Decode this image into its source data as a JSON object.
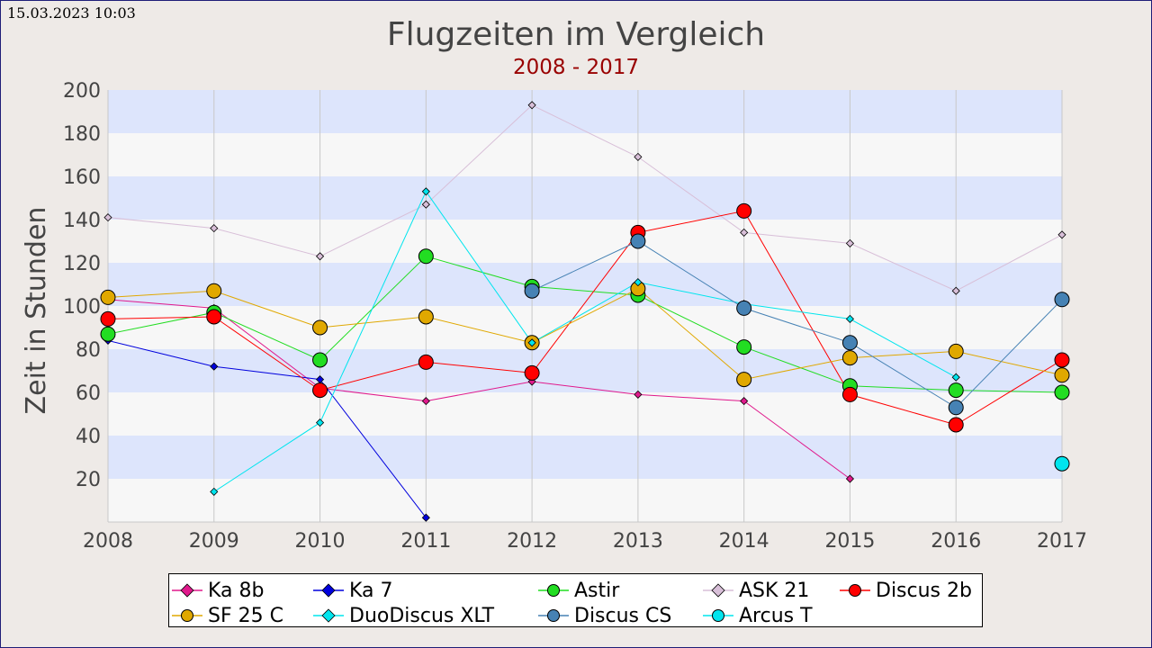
{
  "timestamp": "15.03.2023 10:03",
  "chart_data": {
    "type": "line",
    "title": "Flugzeiten im Vergleich",
    "subtitle": "2008 - 2017",
    "xlabel": "",
    "ylabel": "Zeit in Stunden",
    "x": [
      "2008",
      "2009",
      "2010",
      "2011",
      "2012",
      "2013",
      "2014",
      "2015",
      "2016",
      "2017"
    ],
    "ylim": [
      0,
      200
    ],
    "yticks": [
      20,
      40,
      60,
      80,
      100,
      120,
      140,
      160,
      180,
      200
    ],
    "grid": "horizontal bands and vertical lines",
    "legend_position": "bottom",
    "band_colors": [
      "#dde5fc",
      "#f7f7f7"
    ],
    "series": [
      {
        "name": "Ka 8b",
        "color": "#e0198c",
        "marker": "small",
        "values": [
          103,
          99,
          62,
          56,
          65,
          59,
          56,
          20,
          null,
          null
        ]
      },
      {
        "name": "Ka 7",
        "color": "#0000dd",
        "marker": "small",
        "values": [
          84,
          72,
          66,
          2,
          null,
          null,
          null,
          null,
          null,
          null
        ]
      },
      {
        "name": "Astir",
        "color": "#22dd22",
        "marker": "large",
        "values": [
          87,
          97,
          75,
          123,
          109,
          105,
          81,
          63,
          61,
          60
        ]
      },
      {
        "name": "ASK 21",
        "color": "#d8bfd8",
        "marker": "small",
        "values": [
          141,
          136,
          123,
          147,
          193,
          169,
          134,
          129,
          107,
          133
        ]
      },
      {
        "name": "Discus 2b",
        "color": "#ff0000",
        "marker": "large",
        "values": [
          94,
          95,
          61,
          74,
          69,
          134,
          144,
          59,
          45,
          75
        ]
      },
      {
        "name": "SF 25 C",
        "color": "#e0a800",
        "marker": "large",
        "values": [
          104,
          107,
          90,
          95,
          83,
          108,
          66,
          76,
          79,
          68
        ]
      },
      {
        "name": "DuoDiscus XLT",
        "color": "#00e5ee",
        "marker": "small",
        "values": [
          null,
          14,
          46,
          153,
          83,
          111,
          101,
          94,
          67,
          null
        ]
      },
      {
        "name": "Discus CS",
        "color": "#4682b4",
        "marker": "large",
        "values": [
          null,
          null,
          null,
          null,
          107,
          130,
          99,
          83,
          53,
          103
        ]
      },
      {
        "name": "Arcus T",
        "color": "#00e5ee",
        "marker": "large",
        "values": [
          null,
          null,
          null,
          null,
          null,
          null,
          null,
          null,
          null,
          27
        ]
      }
    ]
  }
}
